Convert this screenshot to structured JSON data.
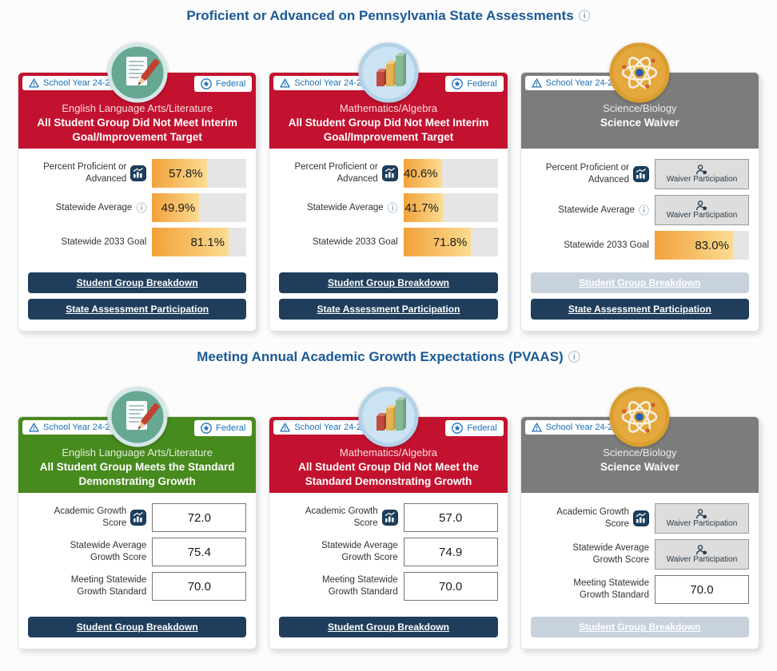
{
  "colors": {
    "card_red": "#C3122F",
    "card_green": "#478A1D",
    "card_gray": "#7C7C7C",
    "button_navy": "#203E5C",
    "button_disabled": "#C7D2DC",
    "title_blue": "#1A5A96",
    "badge_blue": "#1B6FB5",
    "bar_fill_start": "#F2A13A",
    "bar_fill_end": "#FBDC92"
  },
  "sections": [
    {
      "title": "Proficient or Advanced on Pennsylvania State Assessments",
      "cards": [
        {
          "school_year": "School Year 24-25",
          "federal": "Federal",
          "subject": "English Language Arts/Literature",
          "status": "All Student Group Did Not Meet Interim Goal/Improvement Target",
          "rows": [
            {
              "label": "Percent Proficient or Advanced",
              "value": "57.8%",
              "pct": 57.8
            },
            {
              "label": "Statewide Average",
              "value": "49.9%",
              "pct": 49.9
            },
            {
              "label": "Statewide 2033 Goal",
              "value": "81.1%",
              "pct": 81.1
            }
          ],
          "buttons": [
            {
              "label": "Student Group Breakdown",
              "disabled": false
            },
            {
              "label": "State Assessment Participation",
              "disabled": false
            }
          ]
        },
        {
          "school_year": "School Year 24-25",
          "federal": "Federal",
          "subject": "Mathematics/Algebra",
          "status": "All Student Group Did Not Meet Interim Goal/Improvement Target",
          "rows": [
            {
              "label": "Percent Proficient or Advanced",
              "value": "40.6%",
              "pct": 40.6
            },
            {
              "label": "Statewide Average",
              "value": "41.7%",
              "pct": 41.7
            },
            {
              "label": "Statewide 2033 Goal",
              "value": "71.8%",
              "pct": 71.8
            }
          ],
          "buttons": [
            {
              "label": "Student Group Breakdown",
              "disabled": false
            },
            {
              "label": "State Assessment Participation",
              "disabled": false
            }
          ]
        },
        {
          "school_year": "School Year 24-25",
          "subject": "Science/Biology",
          "status": "Science Waiver",
          "rows": [
            {
              "label": "Percent Proficient or Advanced",
              "value": "Waiver Participation"
            },
            {
              "label": "Statewide Average",
              "value": "Waiver Participation"
            },
            {
              "label": "Statewide 2033 Goal",
              "value": "83.0%",
              "pct": 83.0
            }
          ],
          "buttons": [
            {
              "label": "Student Group Breakdown",
              "disabled": true
            },
            {
              "label": "State Assessment Participation",
              "disabled": false
            }
          ]
        }
      ]
    },
    {
      "title": "Meeting Annual Academic Growth Expectations (PVAAS)",
      "cards": [
        {
          "school_year": "School Year 24-25",
          "federal": "Federal",
          "subject": "English Language Arts/Literature",
          "status": "All Student Group Meets the Standard Demonstrating Growth",
          "rows": [
            {
              "label": "Academic Growth Score",
              "value": "72.0"
            },
            {
              "label": "Statewide Average Growth Score",
              "value": "75.4"
            },
            {
              "label": "Meeting Statewide Growth Standard",
              "value": "70.0"
            }
          ],
          "buttons": [
            {
              "label": "Student Group Breakdown",
              "disabled": false
            }
          ]
        },
        {
          "school_year": "School Year 24-25",
          "federal": "Federal",
          "subject": "Mathematics/Algebra",
          "status": "All Student Group Did Not Meet the Standard Demonstrating Growth",
          "rows": [
            {
              "label": "Academic Growth Score",
              "value": "57.0"
            },
            {
              "label": "Statewide Average Growth Score",
              "value": "74.9"
            },
            {
              "label": "Meeting Statewide Growth Standard",
              "value": "70.0"
            }
          ],
          "buttons": [
            {
              "label": "Student Group Breakdown",
              "disabled": false
            }
          ]
        },
        {
          "school_year": "School Year 24-25",
          "subject": "Science/Biology",
          "status": "Science Waiver",
          "rows": [
            {
              "label": "Academic Growth Score",
              "value": "Waiver Participation"
            },
            {
              "label": "Statewide Average Growth Score",
              "value": "Waiver Participation"
            },
            {
              "label": "Meeting Statewide Growth Standard",
              "value": "70.0"
            }
          ],
          "buttons": [
            {
              "label": "Student Group Breakdown",
              "disabled": true
            }
          ]
        }
      ]
    }
  ]
}
